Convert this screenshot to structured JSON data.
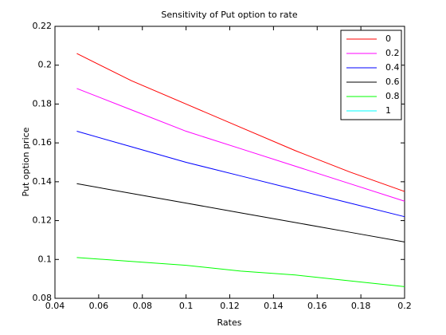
{
  "chart_data": {
    "type": "line",
    "title": "Sensitivity of Put option to rate",
    "xlabel": "Rates",
    "ylabel": "Put option price",
    "x": [
      0.05,
      0.075,
      0.1,
      0.125,
      0.15,
      0.175,
      0.2
    ],
    "series": [
      {
        "name": "0",
        "color": "#ff0000",
        "values": [
          0.206,
          0.192,
          0.18,
          0.168,
          0.156,
          0.145,
          0.135
        ]
      },
      {
        "name": "0.2",
        "color": "#ff00ff",
        "values": [
          0.188,
          0.177,
          0.166,
          0.157,
          0.148,
          0.139,
          0.13
        ]
      },
      {
        "name": "0.4",
        "color": "#0000ff",
        "values": [
          0.166,
          0.158,
          0.15,
          0.143,
          0.136,
          0.129,
          0.122
        ]
      },
      {
        "name": "0.6",
        "color": "#000000",
        "values": [
          0.139,
          0.134,
          0.129,
          0.124,
          0.119,
          0.114,
          0.109
        ]
      },
      {
        "name": "0.8",
        "color": "#00ff00",
        "values": [
          0.101,
          0.099,
          0.097,
          0.094,
          0.092,
          0.089,
          0.086
        ]
      },
      {
        "name": "1",
        "color": "#00ffff",
        "values": [
          null,
          null,
          null,
          null,
          null,
          null,
          null
        ]
      }
    ],
    "xlim": [
      0.04,
      0.2
    ],
    "xticks": [
      0.04,
      0.06,
      0.08,
      0.1,
      0.12,
      0.14,
      0.16,
      0.18,
      0.2
    ],
    "ylim": [
      0.08,
      0.22
    ],
    "yticks": [
      0.08,
      0.1,
      0.12,
      0.14,
      0.16,
      0.18,
      0.2,
      0.22
    ],
    "legend": "top-right"
  }
}
